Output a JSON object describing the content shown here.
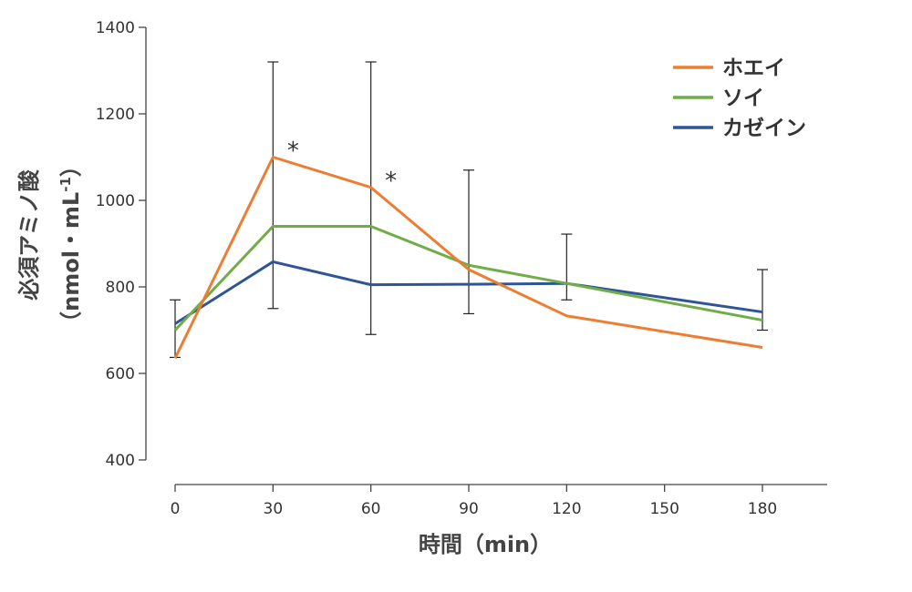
{
  "chart_data": {
    "type": "line",
    "title": "",
    "xlabel": "時間（min）",
    "ylabel_line1": "必須アミノ酸",
    "ylabel_line2_prefix": "（nmol・mL",
    "ylabel_line2_sup": "-1",
    "ylabel_line2_suffix": "）",
    "x": [
      0,
      30,
      60,
      90,
      120,
      180
    ],
    "x_ticks": [
      0,
      30,
      60,
      90,
      120,
      150,
      180
    ],
    "xlim": [
      0,
      200
    ],
    "ylim": [
      400,
      1400
    ],
    "y_ticks": [
      400,
      600,
      800,
      1000,
      1200,
      1400
    ],
    "grid": false,
    "legend_position": "top-right",
    "series": [
      {
        "name": "ホエイ",
        "color": "#ED7D31",
        "values": [
          635,
          1100,
          1030,
          840,
          733,
          660
        ],
        "err_upper": [
          770,
          1320,
          1320,
          1070,
          922,
          840
        ],
        "err_lower": [
          637,
          750,
          690,
          738,
          770,
          700
        ]
      },
      {
        "name": "ソイ",
        "color": "#70AD47",
        "values": [
          700,
          940,
          940,
          850,
          808,
          723
        ]
      },
      {
        "name": "カゼイン",
        "color": "#2F5597",
        "values": [
          715,
          858,
          805,
          806,
          808,
          742
        ]
      }
    ],
    "annotations": [
      {
        "text": "*",
        "x": 30,
        "y": 1122
      },
      {
        "text": "*",
        "x": 60,
        "y": 1053
      }
    ]
  }
}
